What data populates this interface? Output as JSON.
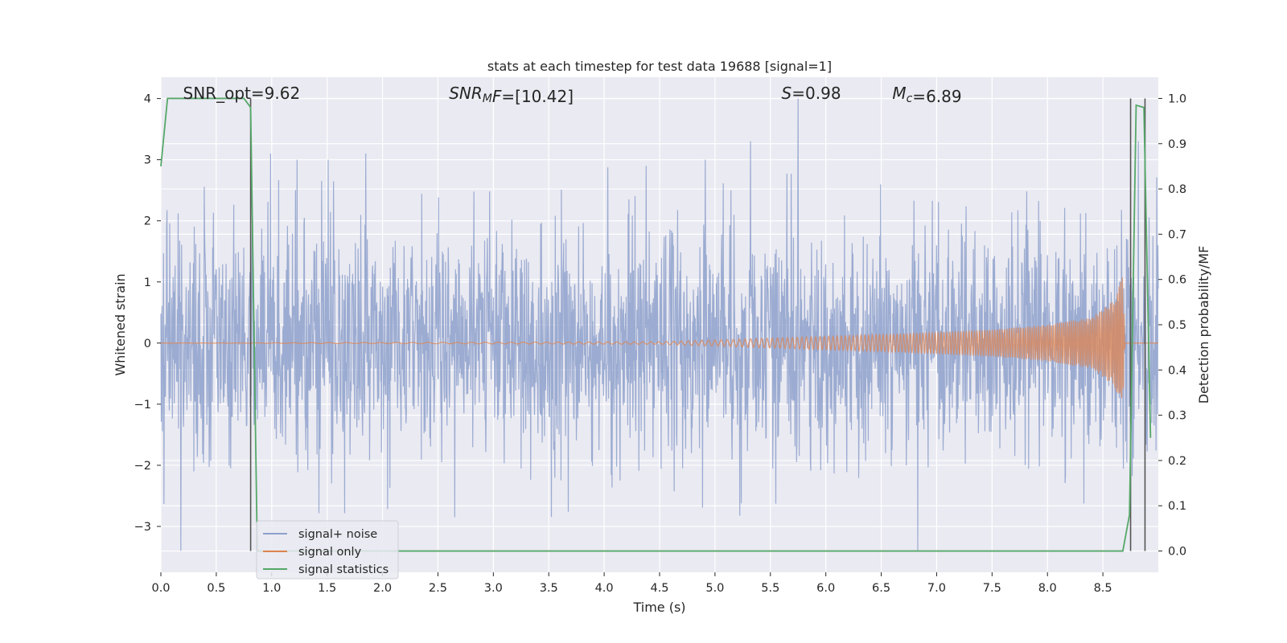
{
  "chart_data": {
    "type": "line",
    "title": "stats at each timestep for test data 19688 [signal=1]",
    "xlabel": "Time (s)",
    "ylabel_left": "Whitened strain",
    "ylabel_right": "Detection probability/MF",
    "xlim": [
      0.0,
      9.0
    ],
    "ylim_left": [
      -3.75,
      4.35
    ],
    "ylim_right": [
      -0.047,
      1.047
    ],
    "xticks": [
      "0.0",
      "0.5",
      "1.0",
      "1.5",
      "2.0",
      "2.5",
      "3.0",
      "3.5",
      "4.0",
      "4.5",
      "5.0",
      "5.5",
      "6.0",
      "6.5",
      "7.0",
      "7.5",
      "8.0",
      "8.5"
    ],
    "yticks_left": [
      "−3",
      "−2",
      "−1",
      "0",
      "1",
      "2",
      "3",
      "4"
    ],
    "yticks_right": [
      "0.0",
      "0.1",
      "0.2",
      "0.3",
      "0.4",
      "0.5",
      "0.6",
      "0.7",
      "0.8",
      "0.9",
      "1.0"
    ],
    "grid": true,
    "background": "#eaeaf2",
    "legend_position": "lower-left",
    "annotations": [
      {
        "prefix": "SNR_opt=",
        "value": "9.62",
        "x": 0.2
      },
      {
        "prefix": "SNR",
        "sub": "M",
        "suffix": "F=",
        "value": "[10.42]",
        "x": 2.6
      },
      {
        "prefix": "S",
        "suffix": "=",
        "value": "0.98",
        "x": 5.6
      },
      {
        "prefix": "M",
        "sub": "c",
        "suffix": "=",
        "value": "6.89",
        "x": 6.6
      }
    ],
    "vertical_lines_x": [
      0.81,
      8.75,
      8.88
    ],
    "series": [
      {
        "name": "signal+ noise",
        "color": "#8da0cb",
        "axis": "left",
        "description": "whitened noise, roughly gaussian with sigma ~1, spanning about -3.4 to 4.0",
        "peaks": [
          {
            "x": 0.18,
            "y": -3.4
          },
          {
            "x": 0.99,
            "y": 3.1
          },
          {
            "x": 1.85,
            "y": 3.1
          },
          {
            "x": 2.65,
            "y": -2.85
          },
          {
            "x": 4.38,
            "y": 2.9
          },
          {
            "x": 5.32,
            "y": 3.3
          },
          {
            "x": 5.75,
            "y": 4.0
          },
          {
            "x": 6.83,
            "y": -3.4
          },
          {
            "x": 8.82,
            "y": 3.3
          }
        ]
      },
      {
        "name": "signal only",
        "color": "#dd8452",
        "axis": "left",
        "description": "chirp signal growing in amplitude, merging near 8.7 s",
        "envelope": {
          "x": [
            0.0,
            4.5,
            5.5,
            6.5,
            7.5,
            8.0,
            8.4,
            8.6,
            8.68,
            8.7,
            9.0
          ],
          "amplitude": [
            0.0,
            0.02,
            0.08,
            0.14,
            0.22,
            0.3,
            0.42,
            0.7,
            1.1,
            0.0,
            0.0
          ]
        }
      },
      {
        "name": "signal statistics",
        "color": "#55a868",
        "axis": "right",
        "x": [
          0.0,
          0.06,
          0.1,
          0.75,
          0.81,
          0.87,
          8.68,
          8.74,
          8.8,
          8.87,
          8.93
        ],
        "y": [
          0.85,
          1.0,
          1.0,
          1.0,
          0.98,
          0.0,
          0.0,
          0.08,
          0.985,
          0.98,
          0.25
        ]
      }
    ]
  }
}
